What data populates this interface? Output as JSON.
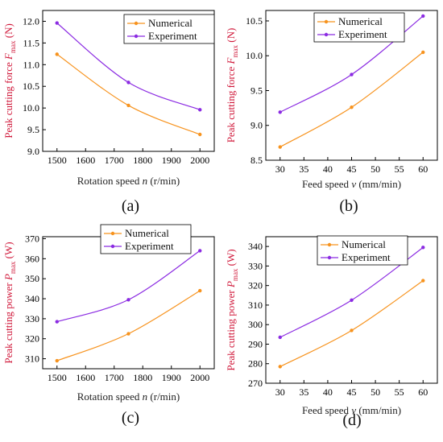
{
  "series_colors": {
    "Numerical": "#f7931e",
    "Experiment": "#8b2be2"
  },
  "ylabel_color": "#d0183a",
  "chart_data": [
    {
      "type": "line",
      "panel_label": "(a)",
      "xlabel_parts": {
        "pre": "Rotation speed ",
        "var": "n",
        "post": " (r/min)"
      },
      "ylabel_parts": {
        "pre": "Peak cutting force ",
        "var": "F",
        "sub": "max",
        "post": " (N)"
      },
      "xlim": [
        1450,
        2050
      ],
      "ylim": [
        9.0,
        12.25
      ],
      "xticks": [
        1500,
        1600,
        1700,
        1800,
        1900,
        2000
      ],
      "xtick_labels": [
        "1500",
        "1600",
        "1700",
        "1800",
        "1900",
        "2000"
      ],
      "yticks": [
        9.0,
        9.5,
        10.0,
        10.5,
        11.0,
        11.5,
        12.0
      ],
      "ytick_labels": [
        "9.0",
        "9.5",
        "10.0",
        "10.5",
        "11.0",
        "11.5",
        "12.0"
      ],
      "legend_position": "top-right",
      "series": [
        {
          "name": "Numerical",
          "x": [
            1500,
            1750,
            2000
          ],
          "values": [
            11.24,
            10.06,
            9.39
          ]
        },
        {
          "name": "Experiment",
          "x": [
            1500,
            1750,
            2000
          ],
          "values": [
            11.96,
            10.59,
            9.96
          ]
        }
      ]
    },
    {
      "type": "line",
      "panel_label": "(b)",
      "xlabel_parts": {
        "pre": "Feed speed ",
        "var": "v",
        "post": " (mm/min)"
      },
      "ylabel_parts": {
        "pre": "Peak cutting force ",
        "var": "F",
        "sub": "max",
        "post": " (N)"
      },
      "xlim": [
        27,
        63
      ],
      "ylim": [
        8.5,
        10.65
      ],
      "xticks": [
        30,
        35,
        40,
        45,
        50,
        55,
        60
      ],
      "xtick_labels": [
        "30",
        "35",
        "40",
        "45",
        "50",
        "55",
        "60"
      ],
      "yticks": [
        8.5,
        9.0,
        9.5,
        10.0,
        10.5
      ],
      "ytick_labels": [
        "8.5",
        "9.0",
        "9.5",
        "10.0",
        "10.5"
      ],
      "legend_position": "top-left",
      "series": [
        {
          "name": "Numerical",
          "x": [
            30,
            45,
            60
          ],
          "values": [
            8.69,
            9.26,
            10.05
          ]
        },
        {
          "name": "Experiment",
          "x": [
            30,
            45,
            60
          ],
          "values": [
            9.19,
            9.73,
            10.57
          ]
        }
      ]
    },
    {
      "type": "line",
      "panel_label": "(c)",
      "xlabel_parts": {
        "pre": "Rotation speed ",
        "var": "n",
        "post": " (r/min)"
      },
      "ylabel_parts": {
        "pre": "Peak cutting power ",
        "var": "P",
        "sub": "max",
        "post": " (W)"
      },
      "xlim": [
        1450,
        2050
      ],
      "ylim": [
        305,
        371
      ],
      "xticks": [
        1500,
        1600,
        1700,
        1800,
        1900,
        2000
      ],
      "xtick_labels": [
        "1500",
        "1600",
        "1700",
        "1800",
        "1900",
        "2000"
      ],
      "yticks": [
        310,
        320,
        330,
        340,
        350,
        360,
        370
      ],
      "ytick_labels": [
        "310",
        "320",
        "330",
        "340",
        "350",
        "360",
        "370"
      ],
      "legend_position": "top-right",
      "series": [
        {
          "name": "Numerical",
          "x": [
            1500,
            1750,
            2000
          ],
          "values": [
            309,
            322.5,
            344
          ]
        },
        {
          "name": "Experiment",
          "x": [
            1500,
            1750,
            2000
          ],
          "values": [
            328.5,
            339.5,
            364
          ]
        }
      ]
    },
    {
      "type": "line",
      "panel_label": "(d)",
      "xlabel_parts": {
        "pre": "Feed speed ",
        "var": "v",
        "post": " (mm/min)"
      },
      "ylabel_parts": {
        "pre": "Peak cutting power ",
        "var": "P",
        "sub": "max",
        "post": " (W)"
      },
      "xlim": [
        27,
        63
      ],
      "ylim": [
        270,
        345
      ],
      "xticks": [
        30,
        35,
        40,
        45,
        50,
        55,
        60
      ],
      "xtick_labels": [
        "30",
        "35",
        "40",
        "45",
        "50",
        "55",
        "60"
      ],
      "yticks": [
        270,
        280,
        290,
        300,
        310,
        320,
        330,
        340
      ],
      "ytick_labels": [
        "270",
        "280",
        "290",
        "300",
        "310",
        "320",
        "330",
        "340"
      ],
      "legend_position": "top-left",
      "series": [
        {
          "name": "Numerical",
          "x": [
            30,
            45,
            60
          ],
          "values": [
            278.5,
            297,
            322.5
          ]
        },
        {
          "name": "Experiment",
          "x": [
            30,
            45,
            60
          ],
          "values": [
            293.5,
            312.5,
            339.5
          ]
        }
      ]
    }
  ]
}
